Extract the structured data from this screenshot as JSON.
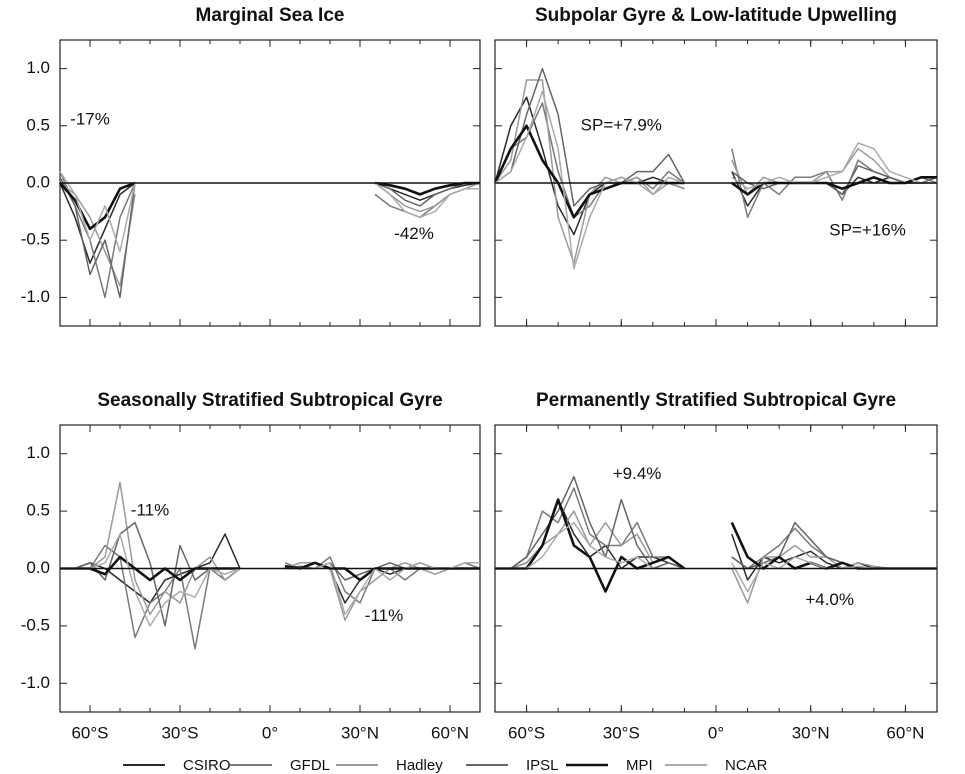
{
  "chart_data": [
    {
      "type": "line",
      "title": "Marginal Sea Ice",
      "x": [
        -70,
        -65,
        -60,
        -55,
        -50,
        -45,
        -40,
        -35,
        -30,
        -25,
        -20,
        -15,
        -10,
        -5,
        0,
        5,
        10,
        15,
        20,
        25,
        30,
        35,
        40,
        45,
        50,
        55,
        60,
        65,
        70
      ],
      "xlim": [
        -70,
        70
      ],
      "xticks": [
        -60,
        -30,
        0,
        30,
        60
      ],
      "show_xtick_labels": false,
      "ylim": [
        -1.25,
        1.25
      ],
      "yticks": [
        {
          "value": -1,
          "label": "-1.0"
        },
        -0.5,
        {
          "value": 0,
          "label": "0.0"
        },
        0.5,
        {
          "value": 1,
          "label": "1.0"
        }
      ],
      "show_ytick_labels": true,
      "annotations": [
        "-17%",
        "-42%"
      ],
      "series": [
        {
          "name": "CSIRO",
          "color": "#2a2a2a",
          "values": [
            0,
            -0.3,
            -0.7,
            -0.4,
            -0.1,
            0,
            null,
            null,
            null,
            null,
            null,
            null,
            null,
            null,
            null,
            null,
            null,
            null,
            null,
            null,
            null,
            0,
            -0.05,
            -0.1,
            -0.15,
            -0.1,
            -0.05,
            -0.02,
            0
          ]
        },
        {
          "name": "GFDL",
          "color": "#7a7a7a",
          "values": [
            0.1,
            -0.2,
            -0.5,
            -1.0,
            -0.3,
            0,
            null,
            null,
            null,
            null,
            null,
            null,
            null,
            null,
            null,
            null,
            null,
            null,
            null,
            null,
            null,
            -0.1,
            -0.2,
            -0.25,
            -0.3,
            -0.2,
            -0.1,
            -0.05,
            -0.05
          ]
        },
        {
          "name": "Hadley",
          "color": "#9a9a9a",
          "values": [
            0,
            -0.1,
            -0.3,
            -0.6,
            -0.9,
            -0.1,
            null,
            null,
            null,
            null,
            null,
            null,
            null,
            null,
            null,
            null,
            null,
            null,
            null,
            null,
            null,
            0,
            -0.1,
            -0.2,
            -0.25,
            -0.2,
            -0.1,
            -0.05,
            0
          ]
        },
        {
          "name": "IPSL",
          "color": "#656565",
          "values": [
            0.05,
            -0.2,
            -0.8,
            -0.5,
            -1.0,
            0,
            null,
            null,
            null,
            null,
            null,
            null,
            null,
            null,
            null,
            null,
            null,
            null,
            null,
            null,
            null,
            0,
            -0.05,
            -0.15,
            -0.2,
            -0.1,
            -0.05,
            0,
            0
          ]
        },
        {
          "name": "MPI",
          "color": "#111111",
          "values": [
            0,
            -0.15,
            -0.4,
            -0.3,
            -0.05,
            0,
            null,
            null,
            null,
            null,
            null,
            null,
            null,
            null,
            null,
            null,
            null,
            null,
            null,
            null,
            null,
            0,
            -0.02,
            -0.05,
            -0.1,
            -0.05,
            -0.02,
            0,
            0
          ]
        },
        {
          "name": "NCAR",
          "color": "#ababab",
          "values": [
            0.1,
            -0.1,
            -0.5,
            -0.2,
            -0.6,
            0,
            null,
            null,
            null,
            null,
            null,
            null,
            null,
            null,
            null,
            null,
            null,
            null,
            null,
            null,
            null,
            0,
            -0.1,
            -0.25,
            -0.3,
            -0.25,
            -0.1,
            -0.05,
            -0.05
          ]
        }
      ]
    },
    {
      "type": "line",
      "title": "Subpolar Gyre & Low-latitude Upwelling",
      "x": [
        -70,
        -65,
        -60,
        -55,
        -50,
        -45,
        -40,
        -35,
        -30,
        -25,
        -20,
        -15,
        -10,
        -5,
        0,
        5,
        10,
        15,
        20,
        25,
        30,
        35,
        40,
        45,
        50,
        55,
        60,
        65,
        70
      ],
      "xlim": [
        -70,
        70
      ],
      "xticks": [
        -60,
        -30,
        0,
        30,
        60
      ],
      "show_xtick_labels": false,
      "ylim": [
        -1.25,
        1.25
      ],
      "yticks": [
        -1,
        -0.5,
        0,
        0.5,
        1
      ],
      "show_ytick_labels": false,
      "annotations": [
        "SP=+7.9%",
        "SP=+16%"
      ],
      "series": [
        {
          "name": "CSIRO",
          "color": "#2a2a2a",
          "values": [
            0,
            0.5,
            0.75,
            0.3,
            -0.2,
            -0.45,
            -0.1,
            0,
            0.05,
            0,
            0.05,
            0,
            -0.05,
            null,
            null,
            0.1,
            -0.2,
            0,
            0,
            0,
            0,
            0,
            -0.1,
            0.05,
            0,
            0.05,
            0,
            0.05,
            0.05
          ]
        },
        {
          "name": "GFDL",
          "color": "#7a7a7a",
          "values": [
            0,
            0.3,
            0.4,
            0.7,
            0.1,
            -0.3,
            -0.2,
            0,
            0,
            0.05,
            -0.05,
            0.1,
            0,
            null,
            null,
            0.3,
            -0.3,
            0,
            -0.1,
            0.05,
            0.05,
            0.1,
            -0.15,
            0.2,
            0.1,
            0.05,
            0,
            0.05,
            0
          ]
        },
        {
          "name": "Hadley",
          "color": "#9a9a9a",
          "values": [
            0,
            0.2,
            0.9,
            0.9,
            -0.3,
            -0.7,
            -0.1,
            0.05,
            0,
            0.05,
            -0.1,
            0,
            -0.05,
            null,
            null,
            0.2,
            -0.1,
            0.05,
            0,
            0,
            0,
            0.1,
            0.1,
            0.3,
            0.2,
            0.05,
            0,
            0,
            0
          ]
        },
        {
          "name": "IPSL",
          "color": "#656565",
          "values": [
            0,
            0.1,
            0.6,
            1.0,
            0.6,
            -0.2,
            -0.05,
            0,
            0,
            0.1,
            0.1,
            0.25,
            0,
            null,
            null,
            0.1,
            0,
            -0.05,
            0,
            0,
            0,
            0,
            -0.1,
            0.15,
            0.1,
            0.05,
            0,
            0,
            0.05
          ]
        },
        {
          "name": "MPI",
          "color": "#111111",
          "values": [
            0,
            0.3,
            0.5,
            0.2,
            0,
            -0.3,
            -0.1,
            -0.05,
            0,
            0,
            0,
            0,
            0,
            null,
            null,
            0,
            -0.1,
            0,
            0,
            0,
            0,
            0,
            -0.05,
            0,
            0.05,
            0,
            0,
            0.05,
            0.05
          ]
        },
        {
          "name": "NCAR",
          "color": "#ababab",
          "values": [
            0,
            0.1,
            0.4,
            0.8,
            0.3,
            -0.75,
            -0.3,
            0,
            0.05,
            0,
            -0.1,
            0.05,
            0,
            null,
            null,
            0.05,
            -0.05,
            0,
            0.05,
            0,
            0,
            0.05,
            0.1,
            0.35,
            0.3,
            0.1,
            0.05,
            0,
            0
          ]
        }
      ]
    },
    {
      "type": "line",
      "title": "Seasonally Stratified Subtropical Gyre",
      "x": [
        -70,
        -65,
        -60,
        -55,
        -50,
        -45,
        -40,
        -35,
        -30,
        -25,
        -20,
        -15,
        -10,
        -5,
        0,
        5,
        10,
        15,
        20,
        25,
        30,
        35,
        40,
        45,
        50,
        55,
        60,
        65,
        70
      ],
      "xlim": [
        -70,
        70
      ],
      "xticks": [
        {
          "value": -60,
          "label": "60°S"
        },
        {
          "value": -30,
          "label": "30°S"
        },
        {
          "value": 0,
          "label": "0°"
        },
        {
          "value": 30,
          "label": "30°N"
        },
        {
          "value": 60,
          "label": "60°N"
        }
      ],
      "show_xtick_labels": true,
      "ylim": [
        -1.25,
        1.25
      ],
      "yticks": [
        {
          "value": -1,
          "label": "-1.0"
        },
        -0.5,
        {
          "value": 0,
          "label": "0.0"
        },
        0.5,
        {
          "value": 1,
          "label": "1.0"
        }
      ],
      "show_ytick_labels": true,
      "annotations": [
        "-11%",
        "-11%"
      ],
      "series": [
        {
          "name": "CSIRO",
          "color": "#2a2a2a",
          "values": [
            0,
            0,
            0.05,
            0,
            -0.1,
            -0.2,
            -0.3,
            -0.1,
            -0.05,
            0,
            0.05,
            0.3,
            0,
            null,
            null,
            0,
            0,
            0.05,
            0,
            -0.3,
            -0.1,
            0,
            -0.05,
            0,
            0.05,
            0,
            0,
            0,
            0
          ]
        },
        {
          "name": "GFDL",
          "color": "#7a7a7a",
          "values": [
            0,
            0,
            0,
            0.2,
            0.1,
            -0.6,
            -0.3,
            -0.2,
            0,
            -0.7,
            0,
            -0.1,
            0,
            null,
            null,
            0.05,
            0,
            0,
            0.1,
            -0.2,
            -0.3,
            0,
            0,
            -0.1,
            0,
            0,
            0,
            0.05,
            0
          ]
        },
        {
          "name": "Hadley",
          "color": "#9a9a9a",
          "values": [
            0,
            0,
            0,
            0.1,
            0.75,
            -0.1,
            -0.4,
            -0.2,
            -0.3,
            0,
            0.1,
            -0.1,
            0,
            null,
            null,
            0,
            0.05,
            0.05,
            0,
            -0.45,
            -0.2,
            -0.1,
            0,
            0.05,
            0,
            -0.05,
            0,
            0,
            0
          ]
        },
        {
          "name": "IPSL",
          "color": "#656565",
          "values": [
            0,
            0,
            0.05,
            -0.1,
            0.3,
            0.4,
            0.05,
            -0.5,
            0.2,
            -0.1,
            0,
            0,
            0,
            null,
            null,
            0,
            0.02,
            0,
            0.05,
            -0.1,
            -0.05,
            0,
            0.05,
            0,
            0,
            0,
            0,
            0,
            0
          ]
        },
        {
          "name": "MPI",
          "color": "#111111",
          "values": [
            0,
            0,
            0,
            -0.05,
            0.1,
            0,
            -0.1,
            0,
            -0.1,
            0,
            0,
            0,
            0,
            null,
            null,
            0.02,
            0,
            0.05,
            0,
            0,
            -0.1,
            0,
            0,
            0,
            0,
            0,
            0,
            0,
            0
          ]
        },
        {
          "name": "NCAR",
          "color": "#ababab",
          "values": [
            0,
            0,
            0,
            0.05,
            0.3,
            -0.2,
            -0.5,
            -0.3,
            -0.2,
            -0.25,
            0,
            -0.05,
            0,
            null,
            null,
            0,
            0,
            0,
            0.05,
            -0.4,
            -0.2,
            0,
            -0.1,
            0,
            0.05,
            0,
            0,
            0.05,
            0.05
          ]
        }
      ]
    },
    {
      "type": "line",
      "title": "Permanently Stratified Subtropical Gyre",
      "x": [
        -70,
        -65,
        -60,
        -55,
        -50,
        -45,
        -40,
        -35,
        -30,
        -25,
        -20,
        -15,
        -10,
        -5,
        0,
        5,
        10,
        15,
        20,
        25,
        30,
        35,
        40,
        45,
        50,
        55,
        60,
        65,
        70
      ],
      "xlim": [
        -70,
        70
      ],
      "xticks": [
        {
          "value": -60,
          "label": "60°S"
        },
        {
          "value": -30,
          "label": "30°S"
        },
        {
          "value": 0,
          "label": "0°"
        },
        {
          "value": 30,
          "label": "30°N"
        },
        {
          "value": 60,
          "label": "60°N"
        }
      ],
      "show_xtick_labels": true,
      "ylim": [
        -1.25,
        1.25
      ],
      "yticks": [
        -1,
        -0.5,
        0,
        0.5,
        1
      ],
      "show_ytick_labels": false,
      "annotations": [
        "+9.4%",
        "+4.0%"
      ],
      "series": [
        {
          "name": "CSIRO",
          "color": "#2a2a2a",
          "values": [
            0,
            0,
            0.05,
            0.2,
            0.6,
            0.3,
            0.1,
            0.2,
            0,
            0.1,
            0.1,
            0.05,
            0,
            null,
            null,
            0.3,
            -0.1,
            0.1,
            0.05,
            0.1,
            0.15,
            0.05,
            0,
            0.05,
            0,
            0,
            0,
            0,
            0
          ]
        },
        {
          "name": "GFDL",
          "color": "#7a7a7a",
          "values": [
            0,
            0,
            0.1,
            0.5,
            0.4,
            0.7,
            0.3,
            0.2,
            0.2,
            0.4,
            0.1,
            0.1,
            0,
            null,
            null,
            0.1,
            0,
            0.1,
            0.2,
            0.35,
            0.2,
            0.1,
            0.05,
            0,
            0,
            0,
            0,
            0,
            0
          ]
        },
        {
          "name": "Hadley",
          "color": "#9a9a9a",
          "values": [
            0,
            0,
            0.05,
            0.2,
            0.3,
            0.5,
            0.2,
            0.4,
            0.2,
            0.3,
            0.05,
            0.1,
            0,
            null,
            null,
            0,
            -0.3,
            0.1,
            0.1,
            0.2,
            0.1,
            0.1,
            0,
            0.05,
            0.02,
            0,
            0,
            0,
            0
          ]
        },
        {
          "name": "IPSL",
          "color": "#656565",
          "values": [
            0,
            0,
            0.1,
            0.3,
            0.5,
            0.8,
            0.4,
            0.1,
            0.6,
            0.2,
            0,
            0.05,
            0,
            null,
            null,
            0.1,
            0,
            0.05,
            0.1,
            0.4,
            0.25,
            0.1,
            0.05,
            0,
            0,
            0,
            0,
            0,
            0
          ]
        },
        {
          "name": "MPI",
          "color": "#111111",
          "values": [
            0,
            0,
            0,
            0.2,
            0.6,
            0.2,
            0.1,
            -0.2,
            0.1,
            0,
            0.05,
            0.1,
            0,
            null,
            null,
            0.4,
            0.1,
            0,
            0.1,
            0,
            0.05,
            0,
            0.05,
            0,
            0,
            0,
            0,
            0,
            0
          ]
        },
        {
          "name": "NCAR",
          "color": "#ababab",
          "values": [
            0,
            0,
            0,
            0.1,
            0.3,
            0.4,
            0.2,
            0.1,
            0.05,
            0.1,
            0,
            0,
            0,
            null,
            null,
            0.05,
            -0.2,
            0.05,
            0,
            0.1,
            0.05,
            0,
            0,
            0.02,
            0,
            0,
            0,
            0,
            0
          ]
        }
      ]
    }
  ]
}
